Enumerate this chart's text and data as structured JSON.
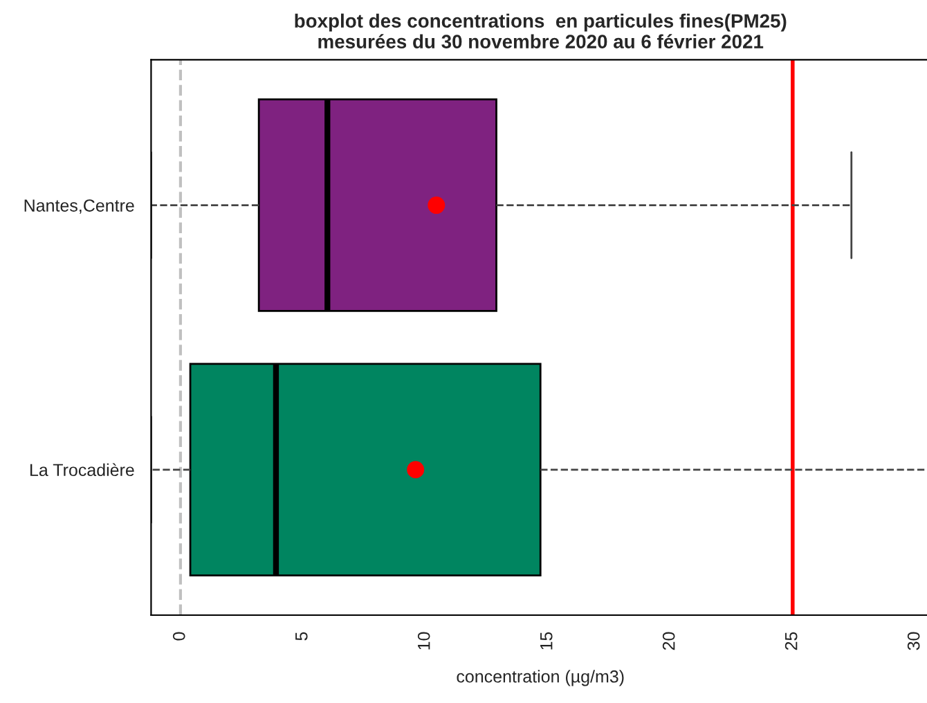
{
  "chart_data": {
    "type": "box",
    "orientation": "horizontal",
    "title": "boxplot des concentrations  en particules fines(PM25)\nmesurées du 30 novembre 2020 au 6 février 2021",
    "xlabel": "concentration (µg/m3)",
    "categories": [
      "Nantes,Centre",
      "La Trocadière"
    ],
    "colors": [
      "#7f2280",
      "#008560"
    ],
    "boxes": [
      {
        "low": -1.2,
        "q1": 3.2,
        "median": 6.0,
        "q3": 12.9,
        "high": 27.4,
        "mean": 10.45
      },
      {
        "low": -1.2,
        "q1": 0.4,
        "median": 3.9,
        "q3": 14.7,
        "high": 30.6,
        "mean": 9.6
      }
    ],
    "xlim": [
      -1.2,
      30.6
    ],
    "xticks": [
      0,
      5,
      10,
      15,
      20,
      25,
      30
    ],
    "ref_lines": [
      {
        "axis": "x",
        "value": 0,
        "color": "#c0c0c0",
        "line_style": "dashed"
      },
      {
        "axis": "x",
        "value": 25,
        "color": "#ff0000",
        "line_style": "solid"
      }
    ],
    "grid": false,
    "legend": false
  }
}
